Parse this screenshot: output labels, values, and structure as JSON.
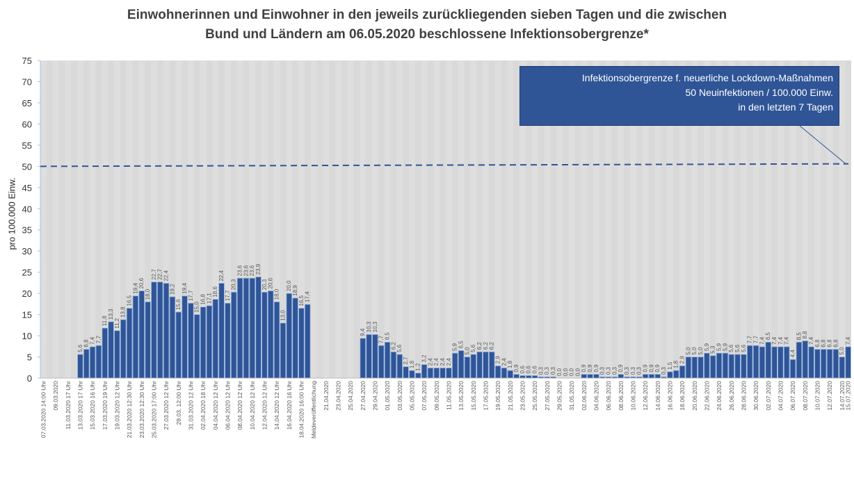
{
  "title_lines": [
    "Einwohnerinnen und Einwohner in den jeweils zurückliegenden sieben Tagen und die zwischen",
    "Bund und Ländern am 06.05.2020 beschlossene Infektionsobergrenze*"
  ],
  "annotation": {
    "lines": [
      "Infektionsobergrenze f. neuerliche Lockdown-Maßnahmen",
      "50 Neuinfektionen / 100.000 Einw.",
      "in den letzten 7 Tagen"
    ]
  },
  "colors": {
    "bar": "#2f5597",
    "bar_edge": "#8fb0e0",
    "plot_bg": "#d9d9d9",
    "threshold": "#2f5597"
  },
  "chart_data": {
    "type": "bar",
    "ylabel": "pro 100.000 Einw.",
    "ylim": [
      0,
      75
    ],
    "yticks": [
      0,
      5,
      10,
      15,
      20,
      25,
      30,
      35,
      40,
      45,
      50,
      55,
      60,
      65,
      70,
      75
    ],
    "threshold": 50,
    "grid": false,
    "categories": [
      "07.03.2020 14:00 Uhr",
      "",
      "09.03.2020",
      "",
      "11.03.2020 17 Uhr",
      "",
      "13.03.2020 17 Uhr",
      "",
      "15.03.2020 16 Uhr",
      "",
      "17.03.2020 19 Uhr",
      "",
      "19.03.2020 12 Uhr",
      "",
      "21.03.2020 12:30 Uhr",
      "",
      "23.03.2020 12:30 Uhr",
      "",
      "25.03.2020 17:00 Uhr",
      "",
      "27.03.2020 12 Uhr",
      "",
      "29.03. 12:00 Uhr",
      "",
      "31.03.2020 12 Uhr",
      "",
      "02.04.2020 18 Uhr",
      "",
      "04.04.2020 12 Uhr",
      "",
      "06.04.2020 12 Uhr",
      "",
      "08.04.2020 12 Uhr",
      "",
      "10.04.2020 12 Uhr",
      "",
      "12.04.2020 12 Uhr",
      "",
      "14.04.2020 12 Uhr",
      "",
      "16.04.2020 16 Uhr",
      "",
      "18.04.2020 16:00 Uhr",
      "",
      "Meldeveröffentlichung",
      "",
      "21.04.2020",
      "",
      "23.04.2020",
      "",
      "25.04.2020",
      "",
      "27.04.2020",
      "",
      "29.04.2020",
      "",
      "01.05.2020",
      "",
      "03.05.2020",
      "",
      "05.05.2020",
      "",
      "07.05.2020",
      "",
      "09.05.2020",
      "",
      "11.05.2020",
      "",
      "13.05.2020",
      "",
      "15.05.2020",
      "",
      "17.05.2020",
      "",
      "19.05.2020",
      "",
      "21.05.2020",
      "",
      "23.05.2020",
      "",
      "25.05.2020",
      "",
      "27.05.2020",
      "",
      "29.05.2020",
      "",
      "31.05.2020",
      "",
      "02.06.2020",
      "",
      "04.06.2020",
      "",
      "06.06.2020",
      "",
      "08.06.2020",
      "",
      "10.06.2020",
      "",
      "12.06.2020",
      "",
      "14.06.2020",
      "",
      "16.06.2020",
      "",
      "18.06.2020",
      "",
      "20.06.2020",
      "",
      "22.06.2020",
      "",
      "24.06.2020",
      "",
      "26.06.2020",
      "",
      "28.06.2020",
      "",
      "30.06.2020",
      "",
      "02.07.2020",
      "",
      "04.07.2020",
      "",
      "06.07.2020",
      "",
      "08.07.2020",
      "",
      "10.07.2020",
      "",
      "12.07.2020",
      "",
      "14.07.2020",
      "15.07.2020"
    ],
    "values": [
      null,
      null,
      null,
      null,
      null,
      null,
      5.6,
      6.8,
      7.4,
      7.7,
      11.8,
      13.3,
      11.2,
      13.8,
      16.5,
      19.4,
      20.6,
      18.0,
      22.7,
      22.7,
      22.4,
      19.2,
      15.6,
      19.4,
      17.7,
      15.0,
      16.8,
      17.1,
      18.6,
      22.4,
      17.7,
      20.3,
      23.6,
      23.6,
      23.6,
      23.9,
      20.3,
      20.6,
      18.0,
      13.0,
      20.0,
      18.9,
      16.5,
      17.4,
      null,
      null,
      null,
      null,
      null,
      null,
      null,
      null,
      9.4,
      10.3,
      10.3,
      7.7,
      8.5,
      6.2,
      5.6,
      2.7,
      1.8,
      1.2,
      3.2,
      2.4,
      2.4,
      2.4,
      2.4,
      5.9,
      6.5,
      5.0,
      5.6,
      6.2,
      6.2,
      6.2,
      2.9,
      2.4,
      1.8,
      0.9,
      0.6,
      0.6,
      0.6,
      0.3,
      0.3,
      0.3,
      0.0,
      0.0,
      0.0,
      0.0,
      0.9,
      0.9,
      0.9,
      0.3,
      0.3,
      0.3,
      0.9,
      0.3,
      0.3,
      0.3,
      0.9,
      0.9,
      0.9,
      0.3,
      1.5,
      1.8,
      2.9,
      5.0,
      5.0,
      5.0,
      5.9,
      5.3,
      5.9,
      5.9,
      5.6,
      5.6,
      5.6,
      7.7,
      7.7,
      7.4,
      8.5,
      7.4,
      7.4,
      7.4,
      4.4,
      8.5,
      8.8,
      7.4,
      6.8,
      6.8,
      6.8,
      6.8,
      5.0,
      7.4
    ]
  }
}
